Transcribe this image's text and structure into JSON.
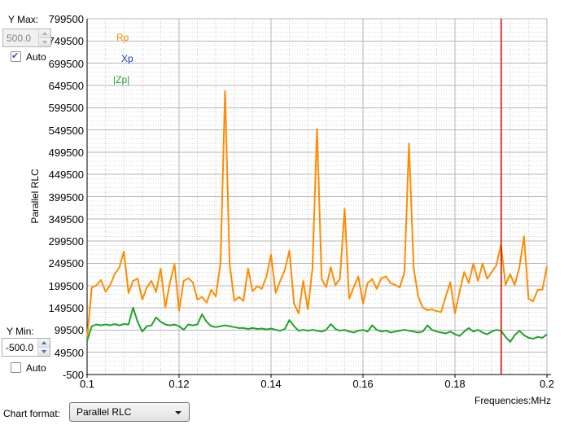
{
  "controls": {
    "y_max": {
      "label": "Y Max:",
      "value": "500.0",
      "auto_label": "Auto",
      "auto_checked": true,
      "enabled": false
    },
    "y_min": {
      "label": "Y Min:",
      "value": "-500.0",
      "auto_label": "Auto",
      "auto_checked": false,
      "enabled": true
    }
  },
  "footer": {
    "chart_format_label": "Chart format:",
    "chart_format_value": "Parallel RLC"
  },
  "chart_data": {
    "type": "line",
    "y_axis_label": "Parallel RLC",
    "x_axis_label": "Frequencies:MHz",
    "xlim": [
      0.1,
      0.2
    ],
    "ylim": [
      -500,
      799500
    ],
    "grid": true,
    "x_ticks": [
      0.1,
      0.12,
      0.14,
      0.16,
      0.18,
      0.2
    ],
    "x_tick_labels": [
      "0.1",
      "0.12",
      "0.14",
      "0.16",
      "0.18",
      "0.2"
    ],
    "y_tick_labels": [
      "799500",
      "749500",
      "699500",
      "649500",
      "599500",
      "549500",
      "499500",
      "449500",
      "399500",
      "349500",
      "299500",
      "249500",
      "199500",
      "149500",
      "99500",
      "49500",
      "-500"
    ],
    "x_minor_step": 0.004,
    "y_minor_step": 10000,
    "cursor": {
      "x": 0.19,
      "color": "#D40000"
    },
    "legend": [
      {
        "label": "Rp",
        "color": "#FF8C00"
      },
      {
        "label": "Xp",
        "color": "#2438C8"
      },
      {
        "label": "|Zp|",
        "color": "#1FA32E"
      }
    ],
    "x_start": 0.1,
    "x_step": 0.001,
    "series": [
      {
        "name": "Rp",
        "color": "#FF8C00",
        "visible": true,
        "values": [
          80000,
          195000,
          200000,
          212000,
          186000,
          200000,
          225000,
          240000,
          276000,
          183000,
          210000,
          215000,
          168000,
          195000,
          210000,
          185000,
          238000,
          150000,
          205000,
          248000,
          143000,
          210000,
          216000,
          207000,
          168000,
          174000,
          161000,
          190000,
          175000,
          250000,
          637000,
          250000,
          165000,
          174000,
          165000,
          238000,
          187000,
          198000,
          192000,
          220000,
          269000,
          183000,
          210000,
          235000,
          278000,
          159000,
          137000,
          210000,
          146000,
          238000,
          552000,
          214000,
          196000,
          241000,
          200000,
          215000,
          372000,
          170000,
          196000,
          220000,
          159000,
          205000,
          214000,
          192000,
          216000,
          220000,
          205000,
          201000,
          195000,
          230000,
          519000,
          240000,
          175000,
          150000,
          144000,
          146000,
          142000,
          140000,
          175000,
          207000,
          137000,
          185000,
          230000,
          205000,
          249000,
          210000,
          249000,
          215000,
          230000,
          245000,
          291000,
          201000,
          225000,
          201000,
          240000,
          310000,
          170000,
          164000,
          190000,
          190000,
          243000
        ]
      },
      {
        "name": "Xp",
        "color": "#2438C8",
        "visible": false,
        "values": []
      },
      {
        "name": "|Zp|",
        "color": "#1FA32E",
        "visible": true,
        "values": [
          75000,
          108000,
          112000,
          110000,
          112000,
          110000,
          113000,
          110000,
          113000,
          112000,
          150000,
          118000,
          96000,
          108000,
          110000,
          128000,
          118000,
          112000,
          110000,
          112000,
          108000,
          100000,
          112000,
          110000,
          112000,
          135000,
          118000,
          108000,
          106000,
          108000,
          110000,
          108000,
          106000,
          104000,
          104000,
          102000,
          104000,
          102000,
          103000,
          101000,
          103000,
          100000,
          98000,
          102000,
          122000,
          108000,
          98000,
          100000,
          98000,
          100000,
          98000,
          96000,
          100000,
          113000,
          102000,
          98000,
          100000,
          96000,
          94000,
          98000,
          100000,
          96000,
          110000,
          100000,
          96000,
          98000,
          94000,
          96000,
          98000,
          100000,
          98000,
          96000,
          94000,
          96000,
          110000,
          100000,
          96000,
          94000,
          92000,
          96000,
          90000,
          86000,
          96000,
          104000,
          96000,
          100000,
          94000,
          90000,
          96000,
          100000,
          98000,
          84000,
          73000,
          88000,
          98000,
          88000,
          82000,
          80000,
          84000,
          82000,
          90000
        ]
      }
    ]
  }
}
